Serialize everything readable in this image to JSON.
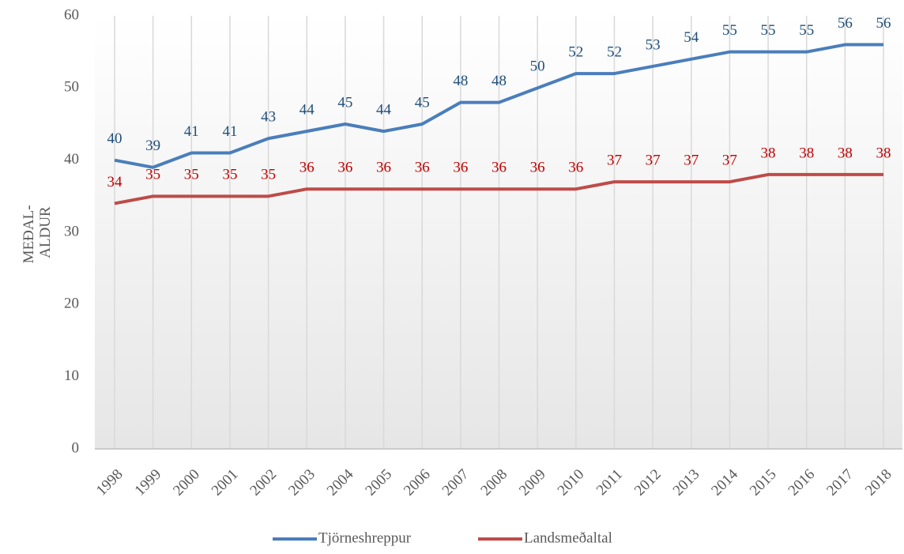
{
  "chart_data": {
    "type": "line",
    "ylabel": [
      "MEÐAL-",
      "ALDUR"
    ],
    "categories": [
      "1998",
      "1999",
      "2000",
      "2001",
      "2002",
      "2003",
      "2004",
      "2005",
      "2006",
      "2007",
      "2008",
      "2009",
      "2010",
      "2011",
      "2012",
      "2013",
      "2014",
      "2015",
      "2016",
      "2017",
      "2018"
    ],
    "series": [
      {
        "name": "Tjörneshreppur",
        "color": "#4a7ebb",
        "label_color": "#1f4e79",
        "values": [
          40,
          39,
          41,
          41,
          43,
          44,
          45,
          44,
          45,
          48,
          48,
          50,
          52,
          52,
          53,
          54,
          55,
          55,
          55,
          56,
          56
        ]
      },
      {
        "name": "Landsmeðaltal",
        "color": "#be4b48",
        "label_color": "#c00000",
        "values": [
          34,
          35,
          35,
          35,
          35,
          36,
          36,
          36,
          36,
          36,
          36,
          36,
          36,
          37,
          37,
          37,
          37,
          38,
          38,
          38,
          38
        ]
      }
    ],
    "ylim": [
      0,
      60
    ],
    "yticks": [
      0,
      10,
      20,
      30,
      40,
      50,
      60
    ],
    "grid": "vertical",
    "legend": "bottom"
  }
}
